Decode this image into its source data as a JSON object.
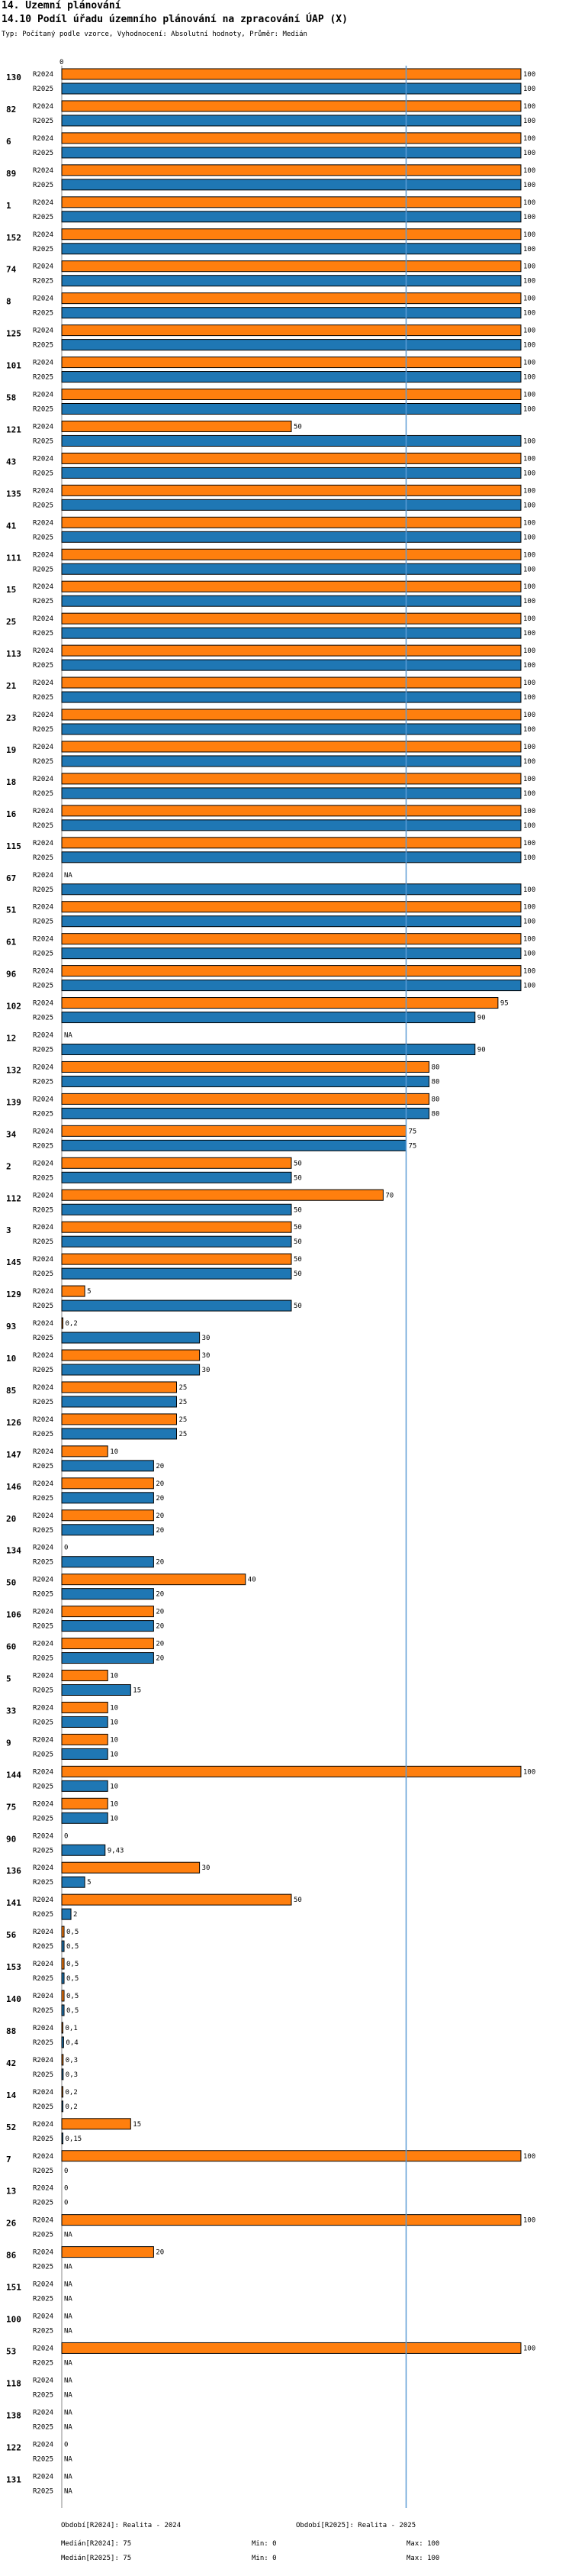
{
  "header": {
    "section": "14. Územní plánování",
    "title": "14.10 Podíl úřadu územního plánování na zpracování ÚAP (X)",
    "subtitle": "Typ: Počítaný podle vzorce, Vyhodnocení: Absolutní hodnoty, Průměr: Medián"
  },
  "colors": {
    "r2024": "#ff7f0e",
    "r2025": "#1f77b4",
    "median": "#5b9bd5"
  },
  "chart_data": {
    "type": "bar",
    "orientation": "horizontal",
    "title": "14.10 Podíl úřadu územního plánování na zpracování ÚAP (X)",
    "axis_zero_label": "0",
    "xlim": [
      0,
      100
    ],
    "median": 75,
    "series_names": [
      "R2024",
      "R2025"
    ],
    "categories": [
      {
        "label": "130",
        "R2024": "100",
        "R2025": "100"
      },
      {
        "label": "82",
        "R2024": "100",
        "R2025": "100"
      },
      {
        "label": "6",
        "R2024": "100",
        "R2025": "100"
      },
      {
        "label": "89",
        "R2024": "100",
        "R2025": "100"
      },
      {
        "label": "1",
        "R2024": "100",
        "R2025": "100"
      },
      {
        "label": "152",
        "R2024": "100",
        "R2025": "100"
      },
      {
        "label": "74",
        "R2024": "100",
        "R2025": "100"
      },
      {
        "label": "8",
        "R2024": "100",
        "R2025": "100"
      },
      {
        "label": "125",
        "R2024": "100",
        "R2025": "100"
      },
      {
        "label": "101",
        "R2024": "100",
        "R2025": "100"
      },
      {
        "label": "58",
        "R2024": "100",
        "R2025": "100"
      },
      {
        "label": "121",
        "R2024": "50",
        "R2025": "100"
      },
      {
        "label": "43",
        "R2024": "100",
        "R2025": "100"
      },
      {
        "label": "135",
        "R2024": "100",
        "R2025": "100"
      },
      {
        "label": "41",
        "R2024": "100",
        "R2025": "100"
      },
      {
        "label": "111",
        "R2024": "100",
        "R2025": "100"
      },
      {
        "label": "15",
        "R2024": "100",
        "R2025": "100"
      },
      {
        "label": "25",
        "R2024": "100",
        "R2025": "100"
      },
      {
        "label": "113",
        "R2024": "100",
        "R2025": "100"
      },
      {
        "label": "21",
        "R2024": "100",
        "R2025": "100"
      },
      {
        "label": "23",
        "R2024": "100",
        "R2025": "100"
      },
      {
        "label": "19",
        "R2024": "100",
        "R2025": "100"
      },
      {
        "label": "18",
        "R2024": "100",
        "R2025": "100"
      },
      {
        "label": "16",
        "R2024": "100",
        "R2025": "100"
      },
      {
        "label": "115",
        "R2024": "100",
        "R2025": "100"
      },
      {
        "label": "67",
        "R2024": "NA",
        "R2025": "100"
      },
      {
        "label": "51",
        "R2024": "100",
        "R2025": "100"
      },
      {
        "label": "61",
        "R2024": "100",
        "R2025": "100"
      },
      {
        "label": "96",
        "R2024": "100",
        "R2025": "100"
      },
      {
        "label": "102",
        "R2024": "95",
        "R2025": "90"
      },
      {
        "label": "12",
        "R2024": "NA",
        "R2025": "90"
      },
      {
        "label": "132",
        "R2024": "80",
        "R2025": "80"
      },
      {
        "label": "139",
        "R2024": "80",
        "R2025": "80"
      },
      {
        "label": "34",
        "R2024": "75",
        "R2025": "75"
      },
      {
        "label": "2",
        "R2024": "50",
        "R2025": "50"
      },
      {
        "label": "112",
        "R2024": "70",
        "R2025": "50"
      },
      {
        "label": "3",
        "R2024": "50",
        "R2025": "50"
      },
      {
        "label": "145",
        "R2024": "50",
        "R2025": "50"
      },
      {
        "label": "129",
        "R2024": "5",
        "R2025": "50"
      },
      {
        "label": "93",
        "R2024": "0,2",
        "R2025": "30"
      },
      {
        "label": "10",
        "R2024": "30",
        "R2025": "30"
      },
      {
        "label": "85",
        "R2024": "25",
        "R2025": "25"
      },
      {
        "label": "126",
        "R2024": "25",
        "R2025": "25"
      },
      {
        "label": "147",
        "R2024": "10",
        "R2025": "20"
      },
      {
        "label": "146",
        "R2024": "20",
        "R2025": "20"
      },
      {
        "label": "20",
        "R2024": "20",
        "R2025": "20"
      },
      {
        "label": "134",
        "R2024": "0",
        "R2025": "20"
      },
      {
        "label": "50",
        "R2024": "40",
        "R2025": "20"
      },
      {
        "label": "106",
        "R2024": "20",
        "R2025": "20"
      },
      {
        "label": "60",
        "R2024": "20",
        "R2025": "20"
      },
      {
        "label": "5",
        "R2024": "10",
        "R2025": "15"
      },
      {
        "label": "33",
        "R2024": "10",
        "R2025": "10"
      },
      {
        "label": "9",
        "R2024": "10",
        "R2025": "10"
      },
      {
        "label": "144",
        "R2024": "100",
        "R2025": "10"
      },
      {
        "label": "75",
        "R2024": "10",
        "R2025": "10"
      },
      {
        "label": "90",
        "R2024": "0",
        "R2025": "9,43"
      },
      {
        "label": "136",
        "R2024": "30",
        "R2025": "5"
      },
      {
        "label": "141",
        "R2024": "50",
        "R2025": "2"
      },
      {
        "label": "56",
        "R2024": "0,5",
        "R2025": "0,5"
      },
      {
        "label": "153",
        "R2024": "0,5",
        "R2025": "0,5"
      },
      {
        "label": "140",
        "R2024": "0,5",
        "R2025": "0,5"
      },
      {
        "label": "88",
        "R2024": "0,1",
        "R2025": "0,4"
      },
      {
        "label": "42",
        "R2024": "0,3",
        "R2025": "0,3"
      },
      {
        "label": "14",
        "R2024": "0,2",
        "R2025": "0,2"
      },
      {
        "label": "52",
        "R2024": "15",
        "R2025": "0,15"
      },
      {
        "label": "7",
        "R2024": "100",
        "R2025": "0"
      },
      {
        "label": "13",
        "R2024": "0",
        "R2025": "0"
      },
      {
        "label": "26",
        "R2024": "100",
        "R2025": "NA"
      },
      {
        "label": "86",
        "R2024": "20",
        "R2025": "NA"
      },
      {
        "label": "151",
        "R2024": "NA",
        "R2025": "NA"
      },
      {
        "label": "100",
        "R2024": "NA",
        "R2025": "NA"
      },
      {
        "label": "53",
        "R2024": "100",
        "R2025": "NA"
      },
      {
        "label": "118",
        "R2024": "NA",
        "R2025": "NA"
      },
      {
        "label": "138",
        "R2024": "NA",
        "R2025": "NA"
      },
      {
        "label": "122",
        "R2024": "0",
        "R2025": "NA"
      },
      {
        "label": "131",
        "R2024": "NA",
        "R2025": "NA"
      }
    ]
  },
  "footer": {
    "obdobi2024": "Období[R2024]: Realita - 2024",
    "obdobi2025": "Období[R2025]: Realita - 2025",
    "median2024": "Medián[R2024]: 75",
    "median2025": "Medián[R2025]: 75",
    "min2024": "Min: 0",
    "min2025": "Min: 0",
    "max2024": "Max: 100",
    "max2025": "Max: 100"
  }
}
